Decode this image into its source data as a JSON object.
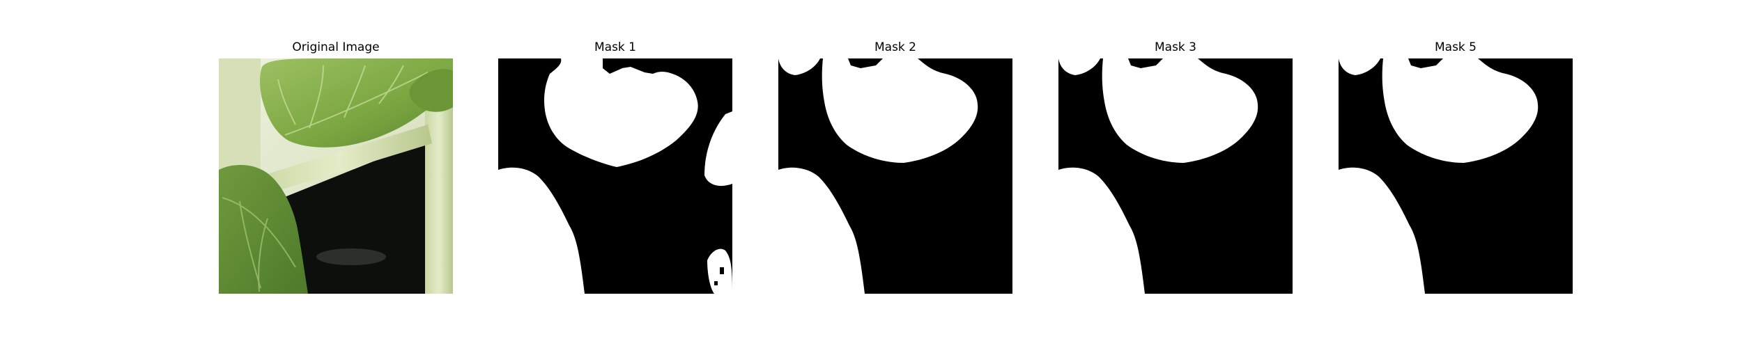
{
  "figure": {
    "panels": [
      {
        "title": "Original Image",
        "kind": "photo",
        "subject": "green-leaf-photo"
      },
      {
        "title": "Mask 1",
        "kind": "mask",
        "subject": "binary-segmentation-mask"
      },
      {
        "title": "Mask 2",
        "kind": "mask",
        "subject": "binary-segmentation-mask"
      },
      {
        "title": "Mask 3",
        "kind": "mask",
        "subject": "binary-segmentation-mask"
      },
      {
        "title": "Mask 5",
        "kind": "mask",
        "subject": "binary-segmentation-mask"
      }
    ]
  },
  "colors": {
    "mask_foreground": "#ffffff",
    "mask_background": "#000000",
    "leaf_light": "#9cc064",
    "leaf_dark": "#5e8a32",
    "stem": "#d8e2b8",
    "backdrop": "#e3ead2",
    "shadow": "#0c0d0b"
  }
}
